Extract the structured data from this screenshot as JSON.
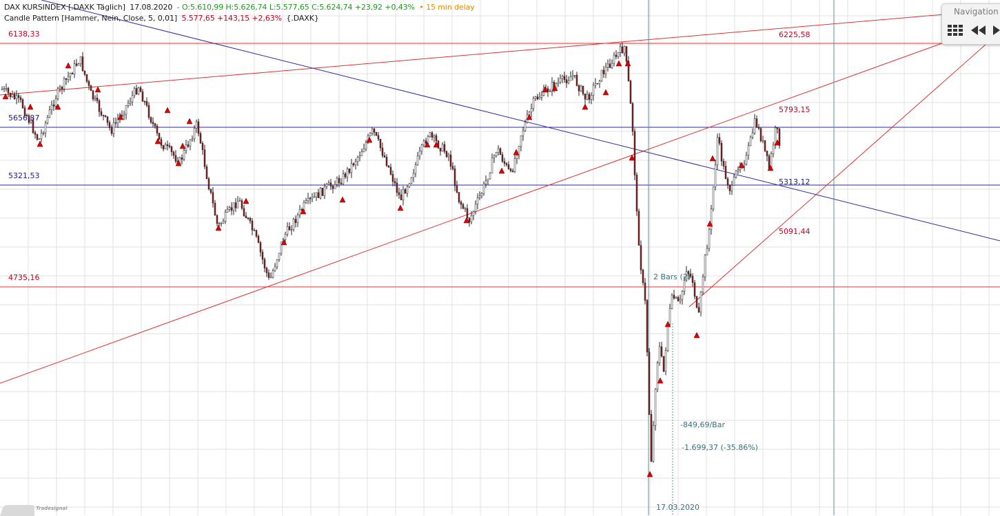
{
  "header": {
    "line1": {
      "instrument": "DAX KURSINDEX [.DAXK Täglich]",
      "date": "17.08.2020",
      "ohlc": "- O:5.610,99 H:5.626,74 L:5.577,65 C:5.624,74 +23,92 +0,43%",
      "delay": "• 15 min delay"
    },
    "line2": {
      "indicator": "Candle Pattern [Hammer, Nein, Close, 5, 0,01]",
      "value": "5.577,65 +143,15 +2,63%",
      "symbol": "{.DAXK}"
    }
  },
  "levels": {
    "l6138": "6138,33",
    "l6225": "6225,58",
    "l5656": "5656,37",
    "l5793": "5793,15",
    "l5321": "5321,53",
    "l5313": "5313,12",
    "l5091": "5091,44",
    "l4735": "4735,16"
  },
  "annotations": {
    "bars": "2 Bars (2)",
    "per_bar": "-849,69/Bar",
    "total": "-1.699,37 (-35.86%)",
    "date": "17.03.2020"
  },
  "navigation": {
    "title": "Navigation",
    "grid_icon": "grid-icon",
    "back_icon": "rewind-icon",
    "forward_icon": "play-icon"
  },
  "watermark": {
    "logo_icon": "tradesignal-logo-icon",
    "text": "Tradesignal"
  },
  "colors": {
    "bear_candle": "#8b1a1a",
    "bull_candle": "#ffffff",
    "hammer_marker": "#e00000",
    "red_line": "#e03030",
    "blue_line": "#2a2a9a",
    "teal_line": "#5d8e96",
    "grid": "#e0e0e0"
  }
}
